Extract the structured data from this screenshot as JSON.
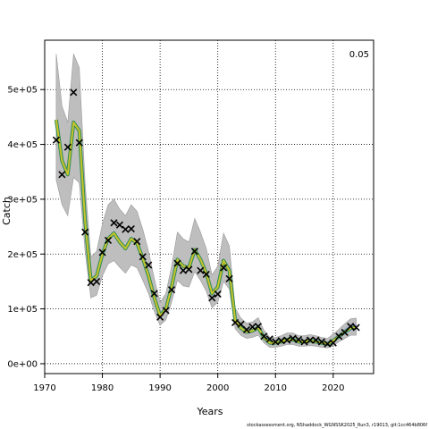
{
  "chart_data": {
    "type": "line",
    "xlabel": "Years",
    "ylabel": "Catch",
    "corner_label": "0.05",
    "footer_note": "stockassessment.org, NShaddock_WGNSSK2025_Run3, r19013, git:1cc464b806f",
    "xlim": [
      1970,
      2027
    ],
    "ylim": [
      -18000,
      590000
    ],
    "x_ticks": [
      1970,
      1980,
      1990,
      2000,
      2010,
      2020
    ],
    "x_tick_labels": [
      "1970",
      "1980",
      "1990",
      "2000",
      "2010",
      "2020"
    ],
    "y_ticks": [
      0,
      100000,
      200000,
      300000,
      400000,
      500000
    ],
    "y_tick_labels": [
      "0e+00",
      "1e+05",
      "2e+05",
      "3e+05",
      "4e+05",
      "5e+05"
    ],
    "grid": true,
    "colors": {
      "band": "#bebebe",
      "band_edge": "#999999",
      "line_outer": "#2e8b57",
      "line_inner": "#c8c42a",
      "observed": "#000000",
      "tail_band": "#a0a0d8"
    },
    "series": [
      {
        "x": [
          1972,
          1973,
          1974,
          1975,
          1976,
          1977,
          1978,
          1979,
          1980,
          1981,
          1982,
          1983,
          1984,
          1985,
          1986,
          1987,
          1988,
          1989,
          1990,
          1991,
          1992,
          1993,
          1994,
          1995,
          1996,
          1997,
          1998,
          1999,
          2000,
          2001,
          2002,
          2003,
          2004,
          2005,
          2006,
          2007,
          2008,
          2009,
          2010,
          2011,
          2012,
          2013,
          2014,
          2015,
          2016,
          2017,
          2018,
          2019,
          2020,
          2021,
          2022,
          2023,
          2024
        ],
        "values": [
          445000,
          370000,
          345000,
          440000,
          425000,
          260000,
          152000,
          160000,
          200000,
          228000,
          238000,
          222000,
          210000,
          228000,
          220000,
          192000,
          160000,
          120000,
          88000,
          100000,
          140000,
          190000,
          178000,
          175000,
          208000,
          190000,
          165000,
          128000,
          140000,
          188000,
          170000,
          80000,
          65000,
          58000,
          60000,
          66000,
          48000,
          38000,
          38000,
          40000,
          44000,
          44000,
          40000,
          40000,
          42000,
          40000,
          38000,
          36000,
          42000,
          50000,
          58000,
          65000,
          66000
        ],
        "lower": [
          335000,
          290000,
          270000,
          340000,
          330000,
          205000,
          120000,
          125000,
          160000,
          182000,
          188000,
          176000,
          165000,
          180000,
          175000,
          152000,
          128000,
          95000,
          70000,
          80000,
          112000,
          152000,
          142000,
          140000,
          168000,
          152000,
          132000,
          102000,
          112000,
          150000,
          136000,
          64000,
          52000,
          46000,
          48000,
          52000,
          38000,
          30000,
          30000,
          32000,
          35000,
          35000,
          32000,
          32000,
          33000,
          32000,
          30000,
          29000,
          33000,
          40000,
          46000,
          52000,
          52000
        ],
        "upper": [
          565000,
          470000,
          440000,
          565000,
          540000,
          330000,
          195000,
          205000,
          255000,
          290000,
          300000,
          282000,
          270000,
          290000,
          278000,
          245000,
          205000,
          155000,
          112000,
          128000,
          178000,
          240000,
          228000,
          222000,
          265000,
          240000,
          210000,
          162000,
          178000,
          238000,
          215000,
          102000,
          83000,
          74000,
          76000,
          84000,
          61000,
          48000,
          48000,
          51000,
          56000,
          56000,
          51000,
          51000,
          53000,
          51000,
          48000,
          46000,
          54000,
          63000,
          73000,
          82000,
          83000
        ]
      }
    ],
    "observed": {
      "x": [
        1972,
        1973,
        1974,
        1975,
        1976,
        1977,
        1978,
        1979,
        1980,
        1981,
        1982,
        1983,
        1984,
        1985,
        1986,
        1987,
        1988,
        1989,
        1990,
        1991,
        1992,
        1993,
        1994,
        1995,
        1996,
        1997,
        1998,
        1999,
        2000,
        2001,
        2002,
        2003,
        2004,
        2005,
        2006,
        2007,
        2008,
        2009,
        2010,
        2011,
        2012,
        2013,
        2014,
        2015,
        2016,
        2017,
        2018,
        2019,
        2020,
        2021,
        2022,
        2023,
        2024
      ],
      "values": [
        408000,
        345000,
        395000,
        495000,
        403000,
        240000,
        148000,
        150000,
        203000,
        225000,
        257000,
        253000,
        245000,
        246000,
        223000,
        195000,
        180000,
        128000,
        85000,
        97000,
        135000,
        183000,
        170000,
        172000,
        205000,
        170000,
        163000,
        120000,
        127000,
        175000,
        155000,
        75000,
        72000,
        62000,
        67000,
        68000,
        50000,
        45000,
        40000,
        42000,
        43000,
        46000,
        44000,
        40000,
        43000,
        43000,
        40000,
        36000,
        38000,
        50000,
        57000,
        68000,
        66000
      ]
    }
  }
}
